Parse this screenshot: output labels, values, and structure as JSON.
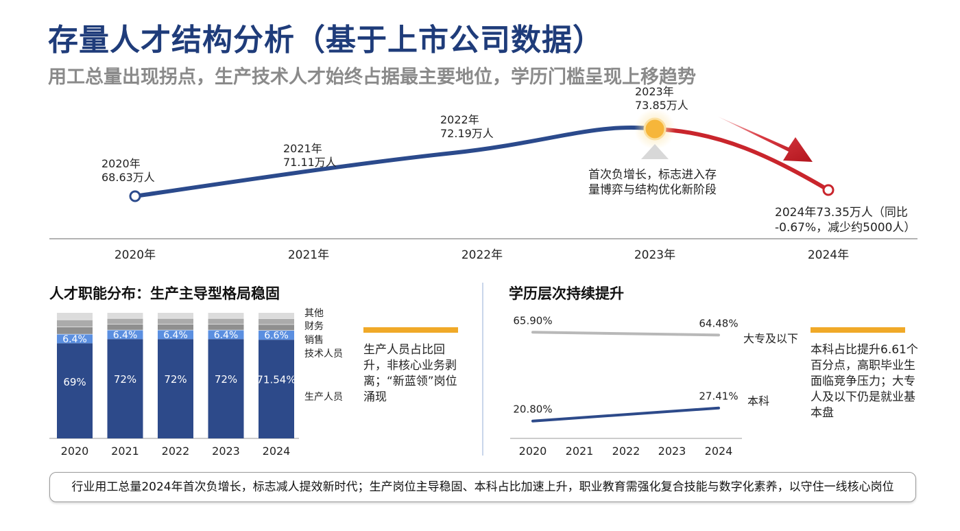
{
  "title": "存量人才结构分析（基于上市公司数据）",
  "subtitle": "用工总量出现拐点，生产技术人才始终占据最主要地位，学历门槛呈现上移趋势",
  "timeline": {
    "points": [
      {
        "label_line1": "2020年",
        "label_line2": "68.63万人"
      },
      {
        "label_line1": "2021年",
        "label_line2": "71.11万人"
      },
      {
        "label_line1": "2022年",
        "label_line2": "72.19万人"
      },
      {
        "label_line1": "2023年",
        "label_line2": "73.85万人"
      }
    ],
    "peak_note_line1": "首次负增长，标志进入存",
    "peak_note_line2": "量博弈与结构优化新阶段",
    "end_label_line1": "2024年73.35万人（同比",
    "end_label_line2": "-0.67%，减少约5000人）",
    "axis_years": [
      "2020年",
      "2021年",
      "2022年",
      "2023年",
      "2024年"
    ],
    "colors": {
      "rise": "#2b4a8c",
      "fall": "#c9252c",
      "peak": "#f6b63a"
    }
  },
  "left_section": {
    "title": "人才职能分布：生产主导型格局稳固",
    "note": "生产人员占比回升，非核心业务剥离；“新蓝领”岗位涌现",
    "category_labels": [
      "其他",
      "财务",
      "销售",
      "技术人员",
      "生产人员"
    ]
  },
  "right_section": {
    "title": "学历层次持续提升",
    "note": "本科占比提升6.61个百分点，高职毕业生面临竞争压力；大专人及以下仍是就业基本盘",
    "series_labels": [
      "大专及以下",
      "本科"
    ]
  },
  "footer": "行业用工总量2024年首次负增长，标志减人提效新时代；生产岗位主导稳固、本科占比加速上升，职业教育需强化复合技能与数字化素养，以守住一线核心岗位",
  "chart_data": [
    {
      "type": "line",
      "title": "",
      "x": [
        "2020年",
        "2021年",
        "2022年",
        "2023年",
        "2024年"
      ],
      "series": [
        {
          "values": [
            68.63,
            71.11,
            72.19,
            73.85,
            73.35
          ]
        }
      ],
      "ylabel": "",
      "grid": false
    },
    {
      "type": "bar",
      "stacked": true,
      "categories": [
        "2020",
        "2021",
        "2022",
        "2023",
        "2024"
      ],
      "series": [
        {
          "name": "生产人员",
          "values": [
            69,
            72,
            72,
            72,
            71.54
          ],
          "labels": [
            "69%",
            "72%",
            "72%",
            "72%",
            "71.54%"
          ],
          "color": "#2d4a8a"
        },
        {
          "name": "技术人员",
          "values": [
            6.4,
            6.4,
            6.4,
            6.4,
            6.6
          ],
          "labels": [
            "6.4%",
            "6.4%",
            "6.4%",
            "6.4%",
            "6.6%"
          ],
          "color": "#5b8fe0"
        },
        {
          "name": "销售",
          "color": "#8f8f8f"
        },
        {
          "name": "财务",
          "color": "#ababab"
        },
        {
          "name": "其他",
          "color": "#dcdcdc"
        }
      ],
      "legend": "right"
    },
    {
      "type": "line",
      "x": [
        "2020",
        "2021",
        "2022",
        "2023",
        "2024"
      ],
      "series": [
        {
          "name": "大专及以下",
          "start": 65.9,
          "end": 64.48,
          "start_label": "65.90%",
          "end_label": "64.48%",
          "color": "#b8b8b8"
        },
        {
          "name": "本科",
          "start": 20.8,
          "end": 27.41,
          "start_label": "20.80%",
          "end_label": "27.41%",
          "color": "#2d4a8a"
        }
      ],
      "legend": "right"
    }
  ]
}
